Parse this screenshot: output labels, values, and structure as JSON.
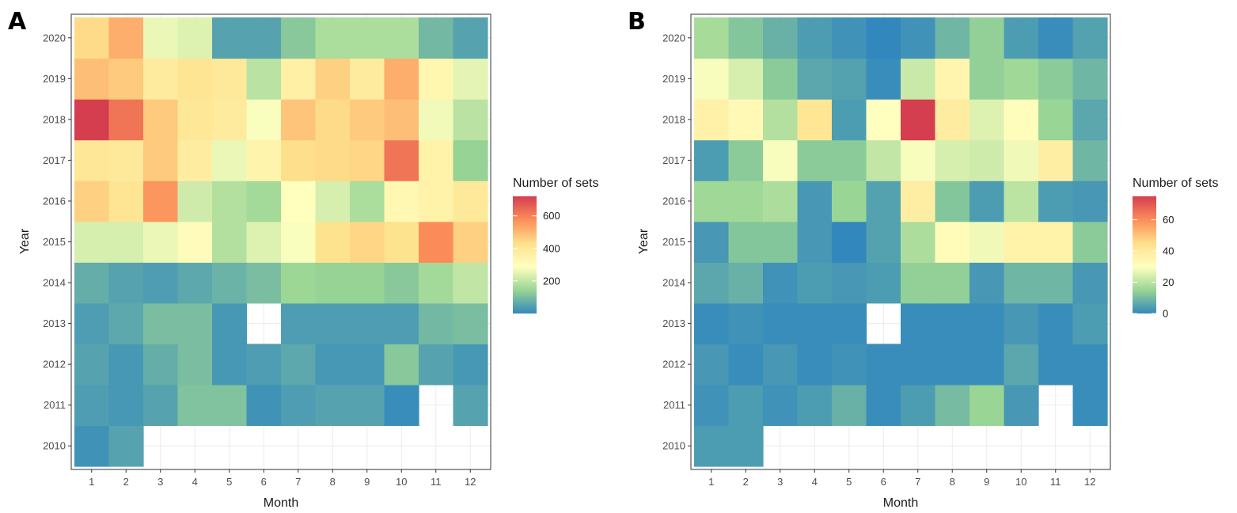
{
  "chart_data": [
    {
      "type": "heatmap",
      "panel_label": "A",
      "xlabel": "Month",
      "ylabel": "Year",
      "x_categories": [
        "1",
        "2",
        "3",
        "4",
        "5",
        "6",
        "7",
        "8",
        "9",
        "10",
        "11",
        "12"
      ],
      "y_categories": [
        "2010",
        "2011",
        "2012",
        "2013",
        "2014",
        "2015",
        "2016",
        "2017",
        "2018",
        "2019",
        "2020"
      ],
      "legend_title": "Number of sets",
      "legend_ticks": [
        200,
        400,
        600
      ],
      "color_range": [
        0,
        720
      ],
      "palette": [
        "#3288bd",
        "#99d594",
        "#ffffbf",
        "#fee08b",
        "#fc8d59",
        "#d53e4f"
      ],
      "missing": "blank",
      "values": [
        [
          20,
          50,
          null,
          null,
          null,
          null,
          null,
          null,
          null,
          null,
          null,
          null
        ],
        [
          40,
          30,
          50,
          110,
          110,
          20,
          40,
          50,
          50,
          10,
          null,
          50
        ],
        [
          50,
          30,
          70,
          100,
          30,
          40,
          60,
          30,
          30,
          120,
          50,
          30
        ],
        [
          40,
          60,
          100,
          100,
          30,
          null,
          40,
          40,
          40,
          40,
          90,
          100
        ],
        [
          70,
          50,
          40,
          60,
          80,
          100,
          150,
          140,
          140,
          120,
          160,
          200
        ],
        [
          230,
          230,
          260,
          300,
          180,
          240,
          280,
          420,
          450,
          420,
          580,
          460
        ],
        [
          460,
          410,
          560,
          220,
          180,
          160,
          290,
          230,
          170,
          320,
          350,
          390
        ],
        [
          400,
          390,
          470,
          370,
          260,
          340,
          430,
          440,
          450,
          620,
          350,
          140
        ],
        [
          720,
          620,
          470,
          400,
          380,
          280,
          480,
          440,
          470,
          490,
          270,
          190
        ],
        [
          490,
          470,
          380,
          410,
          390,
          190,
          360,
          460,
          380,
          520,
          330,
          250
        ],
        [
          440,
          520,
          260,
          240,
          50,
          50,
          120,
          170,
          170,
          170,
          90,
          50
        ]
      ]
    },
    {
      "type": "heatmap",
      "panel_label": "B",
      "xlabel": "Month",
      "ylabel": "Year",
      "x_categories": [
        "1",
        "2",
        "3",
        "4",
        "5",
        "6",
        "7",
        "8",
        "9",
        "10",
        "11",
        "12"
      ],
      "y_categories": [
        "2010",
        "2011",
        "2012",
        "2013",
        "2014",
        "2015",
        "2016",
        "2017",
        "2018",
        "2019",
        "2020"
      ],
      "legend_title": "Number of sets",
      "legend_ticks": [
        0,
        20,
        40,
        60
      ],
      "color_range": [
        0,
        75
      ],
      "palette": [
        "#3288bd",
        "#99d594",
        "#ffffbf",
        "#fee08b",
        "#fc8d59",
        "#d53e4f"
      ],
      "missing": "blank",
      "values": [
        [
          4,
          4,
          null,
          null,
          null,
          null,
          null,
          null,
          null,
          null,
          null,
          null
        ],
        [
          2,
          4,
          2,
          4,
          8,
          1,
          4,
          10,
          15,
          3,
          null,
          1
        ],
        [
          3,
          1,
          3,
          1,
          2,
          1,
          1,
          1,
          1,
          6,
          1,
          1
        ],
        [
          1,
          2,
          1,
          1,
          1,
          null,
          1,
          1,
          1,
          3,
          1,
          4
        ],
        [
          6,
          8,
          2,
          4,
          3,
          4,
          14,
          14,
          3,
          9,
          9,
          3
        ],
        [
          3,
          12,
          12,
          3,
          0,
          5,
          18,
          32,
          28,
          36,
          36,
          13
        ],
        [
          16,
          16,
          18,
          3,
          15,
          5,
          38,
          12,
          4,
          20,
          4,
          3
        ],
        [
          4,
          13,
          29,
          13,
          13,
          21,
          29,
          24,
          23,
          28,
          38,
          9
        ],
        [
          37,
          33,
          19,
          42,
          4,
          30,
          75,
          39,
          25,
          31,
          15,
          6
        ],
        [
          29,
          24,
          13,
          6,
          5,
          1,
          22,
          35,
          14,
          16,
          13,
          9
        ],
        [
          17,
          12,
          8,
          4,
          2,
          0,
          2,
          9,
          14,
          4,
          1,
          5
        ]
      ]
    }
  ]
}
